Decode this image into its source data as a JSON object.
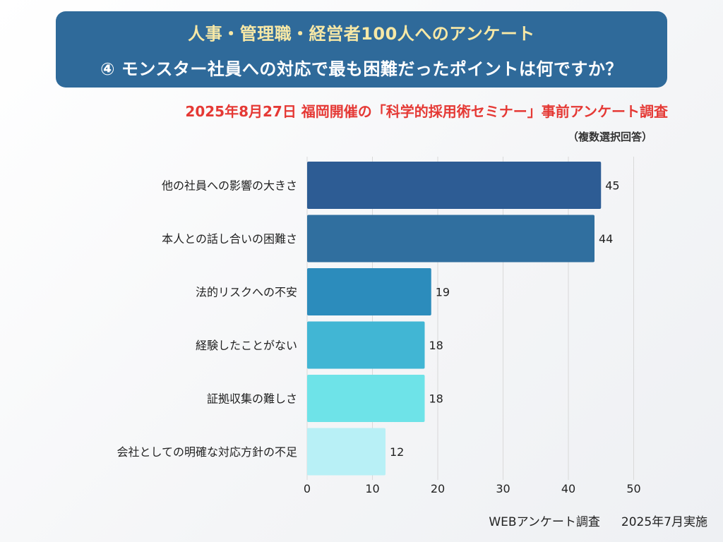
{
  "header": {
    "title": "人事・管理職・経営者100人へのアンケート",
    "question": "④ モンスター社員への対応で最も困難だったポイントは何ですか？",
    "subtitle": "2025年8月27日 福岡開催の「科学的採用術セミナー」事前アンケート調査",
    "note": "（複数選択回答）"
  },
  "chart_data": {
    "type": "bar",
    "orientation": "horizontal",
    "categories": [
      "他の社員への影響の大きさ",
      "本人との話し合いの困難さ",
      "法的リスクへの不安",
      "経験したことがない",
      "証拠収集の難しさ",
      "会社としての明確な対応方針の不足"
    ],
    "values": [
      45,
      44,
      19,
      18,
      18,
      12
    ],
    "colors": [
      "#2d5c94",
      "#306f9f",
      "#2c8cbc",
      "#41b6d4",
      "#6ee3e8",
      "#b8f0f6"
    ],
    "xlim": [
      0,
      50
    ],
    "xticks": [
      0,
      10,
      20,
      30,
      40,
      50
    ],
    "grid": true
  },
  "footer": {
    "survey": "WEBアンケート調査",
    "date": "2025年7月実施"
  }
}
